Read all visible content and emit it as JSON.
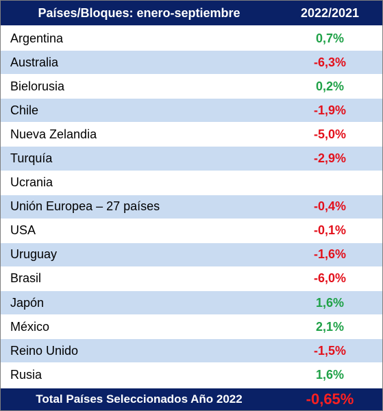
{
  "header": {
    "col1": "Países/Bloques: enero-septiembre",
    "col2": "2022/2021"
  },
  "rows": [
    {
      "name": "Argentina",
      "value": "0,7%",
      "sign": "pos"
    },
    {
      "name": "Australia",
      "value": "-6,3%",
      "sign": "neg"
    },
    {
      "name": "Bielorusia",
      "value": "0,2%",
      "sign": "pos"
    },
    {
      "name": "Chile",
      "value": "-1,9%",
      "sign": "neg"
    },
    {
      "name": "Nueva Zelandia",
      "value": "-5,0%",
      "sign": "neg"
    },
    {
      "name": "Turquía",
      "value": "-2,9%",
      "sign": "neg"
    },
    {
      "name": "Ucrania",
      "value": "",
      "sign": "none"
    },
    {
      "name": "Unión Europea – 27 países",
      "value": "-0,4%",
      "sign": "neg"
    },
    {
      "name": "USA",
      "value": "-0,1%",
      "sign": "neg"
    },
    {
      "name": "Uruguay",
      "value": "-1,6%",
      "sign": "neg"
    },
    {
      "name": "Brasil",
      "value": "-6,0%",
      "sign": "neg"
    },
    {
      "name": "Japón",
      "value": "1,6%",
      "sign": "pos"
    },
    {
      "name": "México",
      "value": "2,1%",
      "sign": "pos"
    },
    {
      "name": "Reino Unido",
      "value": "-1,5%",
      "sign": "neg"
    },
    {
      "name": "Rusia",
      "value": "1,6%",
      "sign": "pos"
    }
  ],
  "footer": {
    "label": "Total Países Seleccionados Año 2022",
    "value": "-0,65%"
  },
  "colors": {
    "header_bg": "#0a2166",
    "stripe": "#c9dbf1",
    "positive": "#1fa147",
    "negative": "#e3101b"
  }
}
